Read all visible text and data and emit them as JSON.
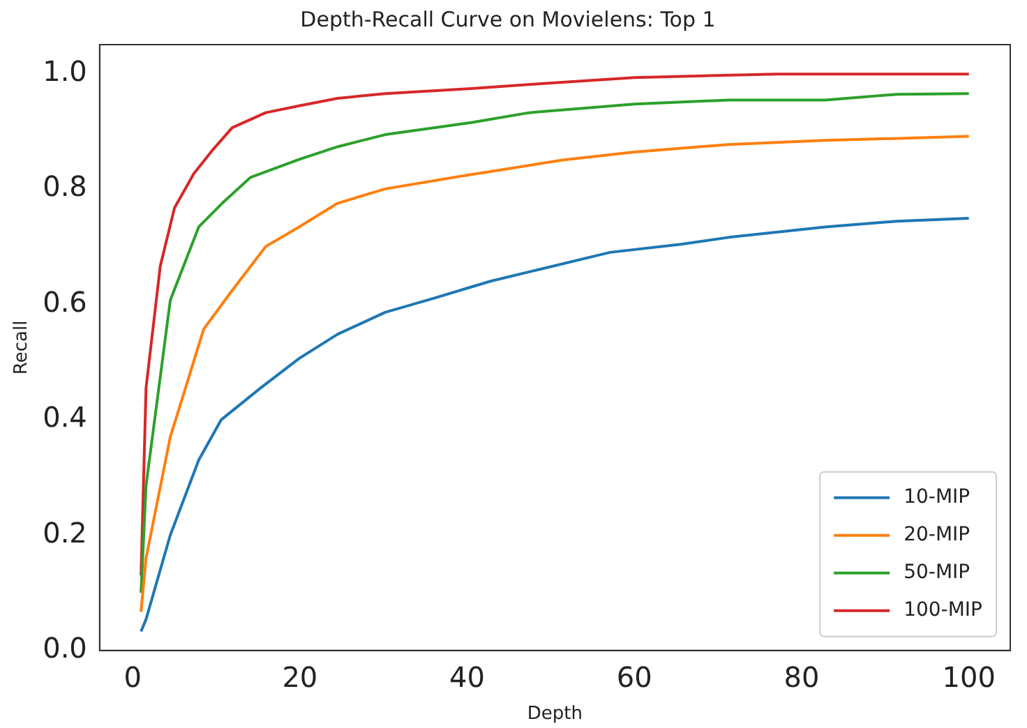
{
  "chart_data": {
    "type": "line",
    "title": "Depth-Recall Curve on Movielens: Top 1",
    "xlabel": "Depth",
    "ylabel": "Recall",
    "xlim": [
      -3.95,
      104.95
    ],
    "xticks": [
      0,
      20,
      40,
      60,
      80,
      100
    ],
    "ylim": [
      0,
      1.05
    ],
    "yticks": [
      {
        "value": 0,
        "label": "0.0"
      },
      {
        "value": 0.2,
        "label": "0.2"
      },
      {
        "value": 0.4,
        "label": "0.4"
      },
      {
        "value": 0.6,
        "label": "0.6"
      },
      {
        "value": 0.8,
        "label": "0.8"
      },
      {
        "value": 1,
        "label": "1.0"
      }
    ],
    "grid": false,
    "legend": "bottom right",
    "marker": "none",
    "line_style": "solid",
    "series": [
      {
        "name": "10-MIP",
        "color": "#1f77b4",
        "x": [
          1,
          1.6,
          4.5,
          7.9,
          10.6,
          15.3,
          19.9,
          24.5,
          30.2,
          35.9,
          40.5,
          42.8,
          48.5,
          57.1,
          65.6,
          71.3,
          82.8,
          91.4,
          100
        ],
        "values": [
          0.033,
          0.054,
          0.2,
          0.33,
          0.4,
          0.455,
          0.506,
          0.548,
          0.586,
          0.61,
          0.63,
          0.64,
          0.66,
          0.69,
          0.704,
          0.716,
          0.734,
          0.744,
          0.749
        ]
      },
      {
        "name": "20-MIP",
        "color": "#ff7f0e",
        "x": [
          1,
          1.6,
          4.5,
          8.5,
          11.9,
          15.9,
          19.9,
          24.5,
          30.2,
          40.5,
          42.8,
          51.4,
          60,
          71.3,
          82.8,
          100
        ],
        "values": [
          0.067,
          0.16,
          0.37,
          0.557,
          0.624,
          0.7,
          0.734,
          0.775,
          0.8,
          0.825,
          0.83,
          0.85,
          0.864,
          0.877,
          0.884,
          0.891
        ]
      },
      {
        "name": "50-MIP",
        "color": "#2ca02c",
        "x": [
          1,
          1.6,
          4.5,
          7.9,
          10.7,
          14.1,
          19.9,
          24.5,
          30.2,
          40.5,
          47.4,
          60,
          71.3,
          82.8,
          91.4,
          100
        ],
        "values": [
          0.1,
          0.286,
          0.607,
          0.734,
          0.775,
          0.82,
          0.851,
          0.873,
          0.894,
          0.915,
          0.932,
          0.947,
          0.954,
          0.954,
          0.964,
          0.965
        ]
      },
      {
        "name": "100-MIP",
        "color": "#d62728",
        "x": [
          1,
          1.6,
          3.3,
          5,
          7.3,
          9.6,
          11.9,
          15.9,
          19.9,
          24.5,
          30.2,
          40.5,
          48.5,
          60,
          77,
          100
        ],
        "values": [
          0.13,
          0.455,
          0.666,
          0.767,
          0.826,
          0.868,
          0.906,
          0.932,
          0.944,
          0.957,
          0.965,
          0.974,
          0.982,
          0.993,
          0.999,
          0.999
        ]
      }
    ]
  }
}
